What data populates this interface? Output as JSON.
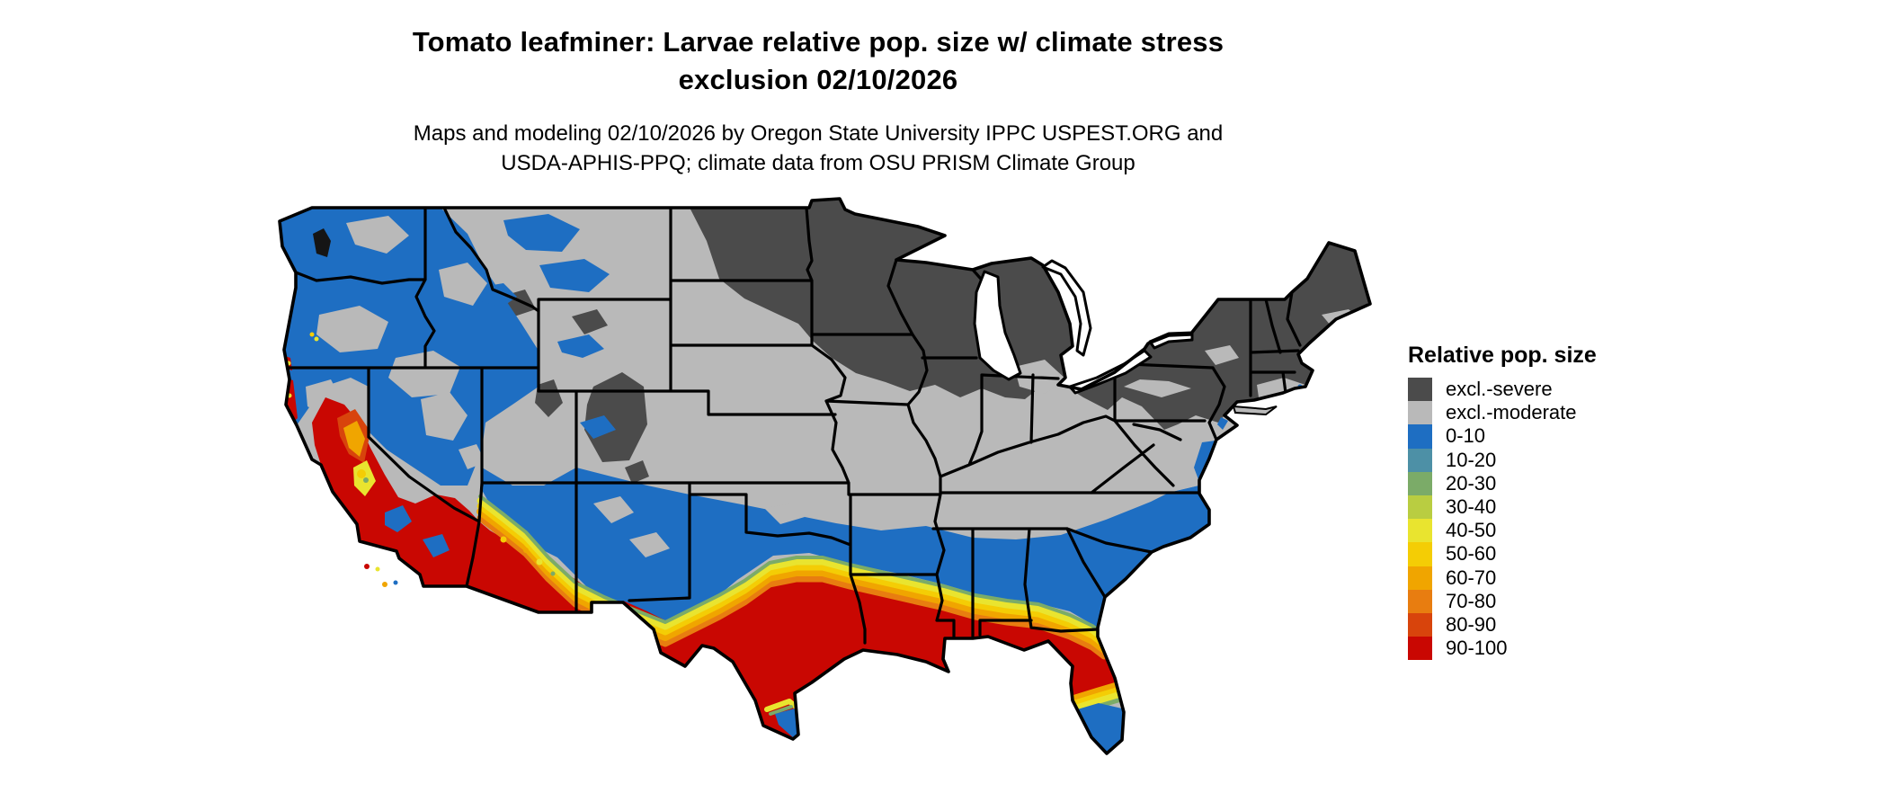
{
  "title": {
    "line1": "Tomato leafminer: Larvae relative pop. size w/ climate stress",
    "line2": "exclusion 02/10/2026"
  },
  "subtitle": {
    "line1": "Maps and modeling 02/10/2026 by Oregon State University IPPC USPEST.ORG and",
    "line2": "USDA-APHIS-PPQ; climate data from OSU PRISM Climate Group"
  },
  "legend": {
    "title": "Relative pop. size",
    "items": [
      {
        "id": "sev",
        "label": "excl.-severe",
        "color": "#4b4b4b"
      },
      {
        "id": "mod",
        "label": "excl.-moderate",
        "color": "#b9b9b9"
      },
      {
        "id": "b0",
        "label": "0-10",
        "color": "#1e6ec2"
      },
      {
        "id": "b10",
        "label": "10-20",
        "color": "#4d90a6"
      },
      {
        "id": "b20",
        "label": "20-30",
        "color": "#7bab68"
      },
      {
        "id": "b30",
        "label": "30-40",
        "color": "#b9cd41"
      },
      {
        "id": "b40",
        "label": "40-50",
        "color": "#e9e42f"
      },
      {
        "id": "b50",
        "label": "50-60",
        "color": "#f4cd05"
      },
      {
        "id": "b60",
        "label": "60-70",
        "color": "#f0a500"
      },
      {
        "id": "b70",
        "label": "70-80",
        "color": "#e87d10"
      },
      {
        "id": "b80",
        "label": "80-90",
        "color": "#d8440c"
      },
      {
        "id": "b90",
        "label": "90-100",
        "color": "#c90702"
      }
    ]
  },
  "map": {
    "area": "Contiguous United States",
    "regions": [
      {
        "area": "Northern tier: ND, MN, WI, MI, upstate NY, New England",
        "class": "excl.-severe"
      },
      {
        "area": "Central band: WY, UT, CO, NE, KS, MO, IL, IN, OH, KY, WV, VA",
        "class": "excl.-moderate"
      },
      {
        "area": "Pacific Northwest, N. California, NV, ID and southern band (N TX, OK, AR, TN, N MS/AL/GA, NC, SC)",
        "class": "0-10"
      },
      {
        "area": "Transition fringe along Gulf states and central Texas",
        "class": "20-80 gradient"
      },
      {
        "area": "Central/S California, S Arizona, S Texas, Gulf coast, N Florida, coastal GA/SC",
        "class": "90-100"
      },
      {
        "area": "Southern tips of Texas and Florida",
        "class": "0-10"
      }
    ]
  }
}
